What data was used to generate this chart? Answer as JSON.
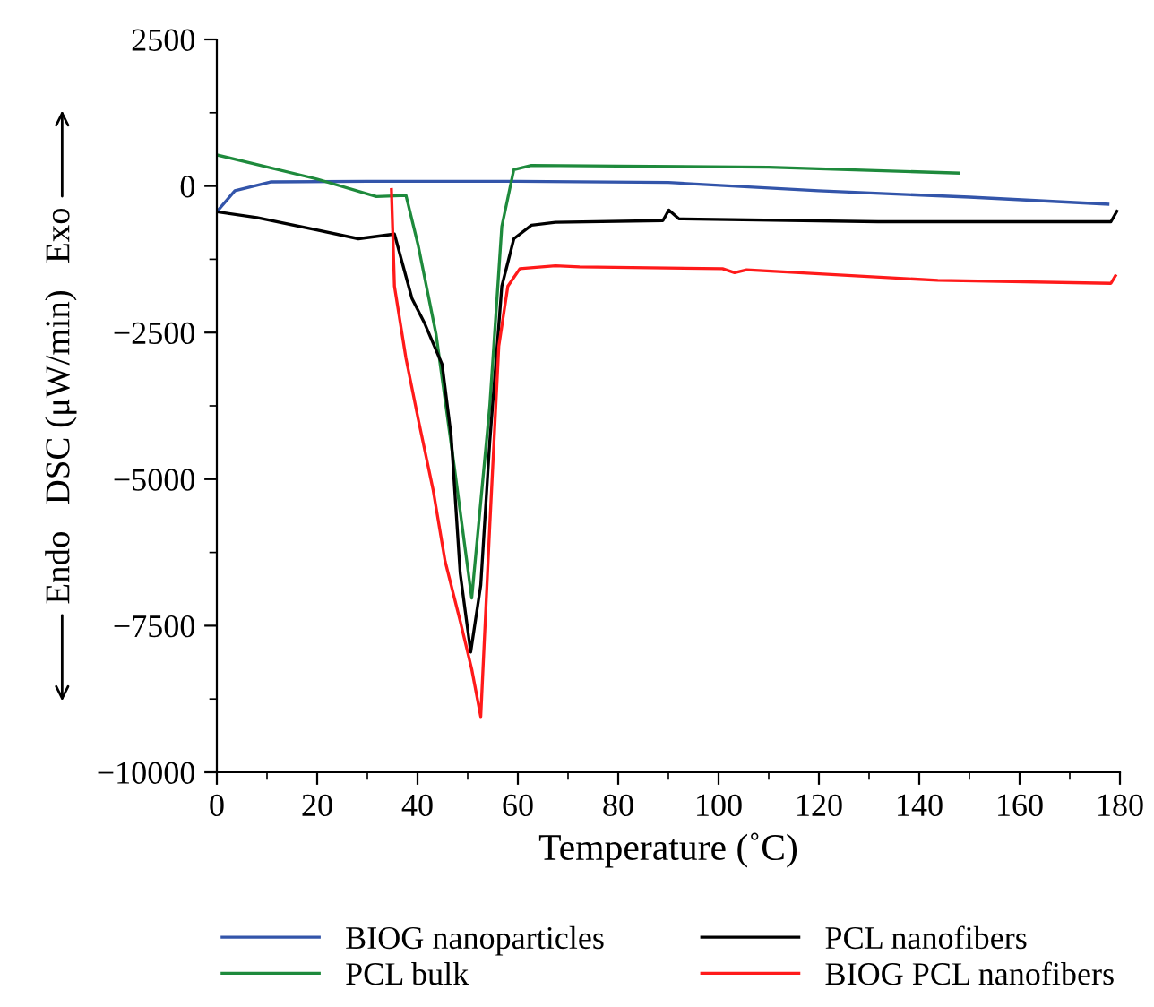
{
  "chart_data": {
    "type": "line",
    "xlabel": "Temperature (˚C)",
    "ylabel": "Endo   DSC (μW/min)   Exo",
    "xlim": [
      0,
      180
    ],
    "ylim": [
      -10000,
      2500
    ],
    "xticks": [
      0,
      {
        "value": 10,
        "label": null
      },
      20,
      {
        "value": 30,
        "label": null
      },
      40,
      {
        "value": 50,
        "label": null
      },
      60,
      {
        "value": 70,
        "label": null
      },
      80,
      {
        "value": 90,
        "label": null
      },
      100,
      {
        "value": 110,
        "label": null
      },
      120,
      {
        "value": 130,
        "label": null
      },
      140,
      {
        "value": 150,
        "label": null
      },
      160,
      {
        "value": 170,
        "label": null
      },
      180
    ],
    "yticks": [
      {
        "value": -10000,
        "label": "−10000"
      },
      {
        "value": -8750,
        "label": null
      },
      {
        "value": -7500,
        "label": "−7500"
      },
      {
        "value": -6250,
        "label": null
      },
      {
        "value": -5000,
        "label": "−5000"
      },
      {
        "value": -3750,
        "label": null
      },
      {
        "value": -2500,
        "label": "−2500"
      },
      {
        "value": -1250,
        "label": null
      },
      0,
      {
        "value": 1250,
        "label": null
      },
      2500
    ],
    "grid": false,
    "legend": "bottom",
    "line_style": "solid",
    "marker": "none",
    "series": [
      {
        "name": "BIOG nanoparticles",
        "color": "#3355aa",
        "x": [
          0,
          3.6,
          10.7,
          30,
          60,
          90,
          119.9,
          150,
          177.6
        ],
        "values": [
          -440,
          -80,
          70,
          80,
          80,
          60,
          -80,
          -190,
          -310
        ]
      },
      {
        "name": "PCL bulk",
        "color": "#1e8a3c",
        "x": [
          0,
          19.9,
          31.8,
          37.7,
          40.1,
          43.7,
          47.3,
          50.8,
          54.4,
          56.8,
          59.2,
          62.7,
          80,
          110,
          147.9
        ],
        "values": [
          530,
          120,
          -180,
          -160,
          -1000,
          -2530,
          -4770,
          -7030,
          -3750,
          -690,
          280,
          350,
          340,
          320,
          220
        ]
      },
      {
        "name": "PCL nanofibers",
        "color": "#000000",
        "x": [
          0,
          8,
          19.9,
          28.2,
          35.4,
          38.9,
          41.3,
          44.9,
          46.7,
          48.5,
          50.6,
          52.6,
          54.4,
          56.8,
          59.2,
          62.7,
          67.5,
          88.9,
          90.1,
          92.1,
          131.8,
          178.2,
          179.4
        ],
        "values": [
          -440,
          -540,
          -750,
          -900,
          -820,
          -1920,
          -2320,
          -3040,
          -4260,
          -6600,
          -7950,
          -6810,
          -4360,
          -1710,
          -900,
          -670,
          -620,
          -590,
          -410,
          -560,
          -610,
          -610,
          -430
        ]
      },
      {
        "name": "BIOG PCL nanofibers",
        "color": "#ff1a1a",
        "x": [
          34.8,
          35.4,
          37.7,
          40.1,
          43.1,
          45.5,
          48.5,
          50.8,
          52.6,
          54.4,
          56.2,
          58.0,
          60.4,
          67.5,
          72.3,
          100.8,
          103.2,
          105.6,
          143.7,
          178.2,
          179.1
        ],
        "values": [
          -60,
          -1710,
          -2940,
          -3960,
          -5180,
          -6400,
          -7420,
          -8240,
          -9050,
          -5790,
          -2730,
          -1710,
          -1410,
          -1360,
          -1380,
          -1410,
          -1480,
          -1430,
          -1610,
          -1660,
          -1530
        ]
      }
    ]
  }
}
